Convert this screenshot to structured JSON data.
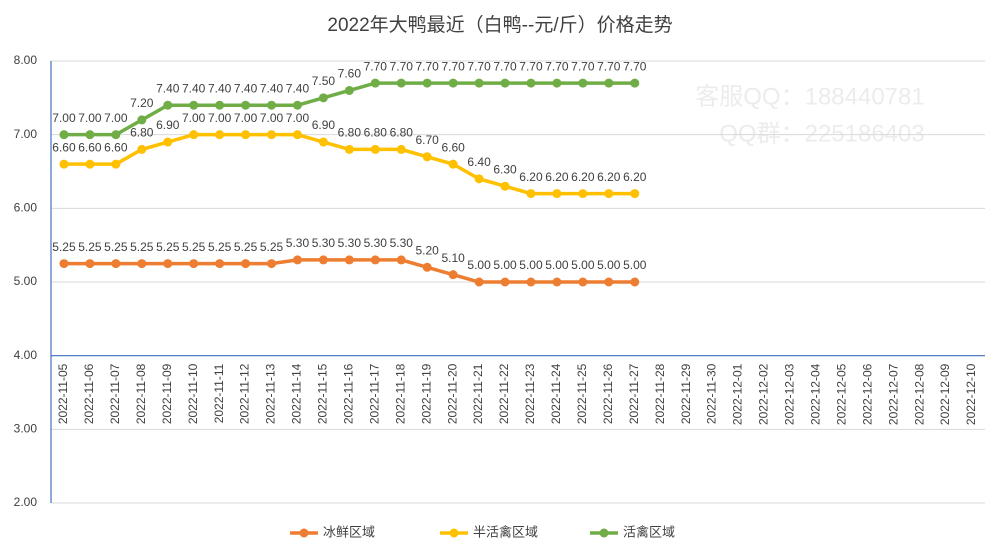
{
  "chart_data": {
    "type": "line",
    "title": "2022年大鸭最近（白鸭--元/斤）价格走势",
    "watermarks": [
      "客服QQ：188440781",
      "QQ群：225186403"
    ],
    "categories": [
      "2022-11-05",
      "2022-11-06",
      "2022-11-07",
      "2022-11-08",
      "2022-11-09",
      "2022-11-10",
      "2022-11-11",
      "2022-11-12",
      "2022-11-13",
      "2022-11-14",
      "2022-11-15",
      "2022-11-16",
      "2022-11-17",
      "2022-11-18",
      "2022-11-19",
      "2022-11-20",
      "2022-11-21",
      "2022-11-22",
      "2022-11-23",
      "2022-11-24",
      "2022-11-25",
      "2022-11-26",
      "2022-11-27",
      "2022-11-28",
      "2022-11-29",
      "2022-11-30",
      "2022-12-01",
      "2022-12-02",
      "2022-12-03",
      "2022-12-04",
      "2022-12-05",
      "2022-12-06",
      "2022-12-07",
      "2022-12-08",
      "2022-12-09",
      "2022-12-10"
    ],
    "series": [
      {
        "name": "冰鲜区域",
        "color": "#ed7d31",
        "values": [
          5.25,
          5.25,
          5.25,
          5.25,
          5.25,
          5.25,
          5.25,
          5.25,
          5.25,
          5.3,
          5.3,
          5.3,
          5.3,
          5.3,
          5.2,
          5.1,
          5,
          5,
          5,
          5,
          5,
          5,
          5,
          null,
          null,
          null,
          null,
          null,
          null,
          null,
          null,
          null,
          null,
          null,
          null,
          null
        ],
        "value_labels": [
          "5.25",
          "5.25",
          "5.25",
          "5.25",
          "5.25",
          "5.25",
          "5.25",
          "5.25",
          "5.25",
          "5.30",
          "5.30",
          "5.30",
          "5.30",
          "5.30",
          "5.20",
          "5.10",
          "5.00",
          "5.00",
          "5.00",
          "5.00",
          "5.00",
          "5.00",
          "5.00",
          null,
          null,
          null,
          null,
          null,
          null,
          null,
          null,
          null,
          null,
          null,
          null,
          null
        ]
      },
      {
        "name": "半活禽区域",
        "color": "#ffc000",
        "values": [
          6.6,
          6.6,
          6.6,
          6.8,
          6.9,
          7,
          7,
          7,
          7,
          7,
          6.9,
          6.8,
          6.8,
          6.8,
          6.7,
          6.6,
          6.4,
          6.3,
          6.2,
          6.2,
          6.2,
          6.2,
          6.2,
          null,
          null,
          null,
          null,
          null,
          null,
          null,
          null,
          null,
          null,
          null,
          null,
          null
        ],
        "value_labels": [
          "6.60",
          "6.60",
          "6.60",
          "6.80",
          "6.90",
          "7.00",
          "7.00",
          "7.00",
          "7.00",
          "7.00",
          "6.90",
          "6.80",
          "6.80",
          "6.80",
          "6.70",
          "6.60",
          "6.40",
          "6.30",
          "6.20",
          "6.20",
          "6.20",
          "6.20",
          "6.20",
          null,
          null,
          null,
          null,
          null,
          null,
          null,
          null,
          null,
          null,
          null,
          null,
          null
        ]
      },
      {
        "name": "活禽区域",
        "color": "#70ad47",
        "values": [
          7,
          7,
          7,
          7.2,
          7.4,
          7.4,
          7.4,
          7.4,
          7.4,
          7.4,
          7.5,
          7.6,
          7.7,
          7.7,
          7.7,
          7.7,
          7.7,
          7.7,
          7.7,
          7.7,
          7.7,
          7.7,
          7.7,
          null,
          null,
          null,
          null,
          null,
          null,
          null,
          null,
          null,
          null,
          null,
          null,
          null
        ],
        "value_labels": [
          "7.00",
          "7.00",
          "7.00",
          "7.20",
          "7.40",
          "7.40",
          "7.40",
          "7.40",
          "7.40",
          "7.40",
          "7.50",
          "7.60",
          "7.70",
          "7.70",
          "7.70",
          "7.70",
          "7.70",
          "7.70",
          "7.70",
          "7.70",
          "7.70",
          "7.70",
          "7.70",
          null,
          null,
          null,
          null,
          null,
          null,
          null,
          null,
          null,
          null,
          null,
          null,
          null
        ]
      }
    ],
    "ylim": [
      2,
      8
    ],
    "yticks": [
      {
        "value": 2,
        "label": "2.00"
      },
      {
        "value": 3,
        "label": "3.00"
      },
      {
        "value": 4,
        "label": "4.00"
      },
      {
        "value": 5,
        "label": "5.00"
      },
      {
        "value": 6,
        "label": "6.00"
      },
      {
        "value": 7,
        "label": "7.00"
      },
      {
        "value": 8,
        "label": "8.00"
      }
    ],
    "x_axis_crosses_at": 4,
    "grid": true,
    "legend": "bottom"
  }
}
